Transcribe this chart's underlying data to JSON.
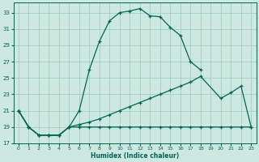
{
  "title": "",
  "xlabel": "Humidex (Indice chaleur)",
  "bg_color": "#cce8e0",
  "grid_color": "#99ccbb",
  "line_color": "#006655",
  "xlim": [
    -0.5,
    23.5
  ],
  "ylim": [
    17,
    34.2
  ],
  "xticks": [
    0,
    1,
    2,
    3,
    4,
    5,
    6,
    7,
    8,
    9,
    10,
    11,
    12,
    13,
    14,
    15,
    16,
    17,
    18,
    19,
    20,
    21,
    22,
    23
  ],
  "yticks": [
    17,
    19,
    21,
    23,
    25,
    27,
    29,
    31,
    33
  ],
  "line1_x": [
    0,
    1,
    2,
    3,
    4,
    5,
    6,
    7,
    8,
    9,
    10,
    11,
    12,
    13,
    14,
    15,
    16,
    17,
    18
  ],
  "line1_y": [
    21,
    19,
    18,
    18,
    18,
    19,
    21,
    26,
    29.5,
    32,
    33,
    33.2,
    33.5,
    32.6,
    32.5,
    31.2,
    30.2,
    27,
    26
  ],
  "line2_x": [
    0,
    1,
    2,
    3,
    4,
    5,
    6,
    7,
    8,
    9,
    10,
    11,
    12,
    13,
    14,
    15,
    16,
    17,
    18,
    19,
    20,
    21,
    22,
    23
  ],
  "line2_y": [
    21,
    19,
    18,
    18,
    18,
    19,
    19,
    19,
    19,
    19,
    19,
    19,
    19,
    19,
    19,
    19,
    19,
    19,
    19,
    19,
    19,
    19,
    19,
    19
  ],
  "line3_x": [
    0,
    1,
    2,
    3,
    4,
    5,
    6,
    7,
    8,
    9,
    10,
    11,
    12,
    13,
    14,
    15,
    16,
    17,
    18,
    20,
    21,
    22,
    23
  ],
  "line3_y": [
    21,
    19,
    18,
    18,
    18,
    19,
    19.3,
    19.6,
    20,
    20.5,
    21,
    21.5,
    22,
    22.5,
    23,
    23.5,
    24,
    24.5,
    25.2,
    22.5,
    23.2,
    24.0,
    19
  ]
}
